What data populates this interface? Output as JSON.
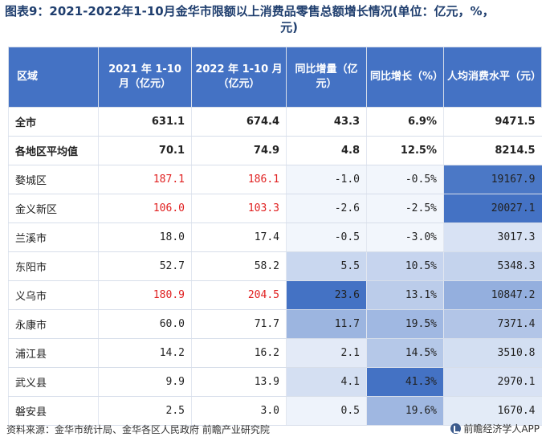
{
  "title": {
    "line1": "图表9：2021-2022年1-10月金华市限额以上消费品零售总额增长情况(单位：亿元，%，",
    "line2": "元)"
  },
  "table": {
    "headers": [
      "区域",
      "2021 年 1-10 月（亿元）",
      "2022 年 1-10 月（亿元）",
      "同比增量（亿元）",
      "同比增长（%）",
      "人均消费水平（元）"
    ],
    "rows": [
      {
        "name": "全市",
        "v2021": "631.1",
        "v2022": "674.4",
        "delta": "43.3",
        "growth": "6.9%",
        "percap": "9471.5"
      },
      {
        "name": "各地区平均值",
        "v2021": "70.1",
        "v2022": "74.9",
        "delta": "4.8",
        "growth": "12.5%",
        "percap": "8214.5"
      },
      {
        "name": "婺城区",
        "v2021": "187.1",
        "v2022": "186.1",
        "delta": "-1.0",
        "growth": "-0.5%",
        "percap": "19167.9"
      },
      {
        "name": "金义新区",
        "v2021": "106.0",
        "v2022": "103.3",
        "delta": "-2.6",
        "growth": "-2.5%",
        "percap": "20027.1"
      },
      {
        "name": "兰溪市",
        "v2021": "18.0",
        "v2022": "17.4",
        "delta": "-0.5",
        "growth": "-3.0%",
        "percap": "3017.3"
      },
      {
        "name": "东阳市",
        "v2021": "52.7",
        "v2022": "58.2",
        "delta": "5.5",
        "growth": "10.5%",
        "percap": "5348.3"
      },
      {
        "name": "义乌市",
        "v2021": "180.9",
        "v2022": "204.5",
        "delta": "23.6",
        "growth": "13.1%",
        "percap": "10847.2"
      },
      {
        "name": "永康市",
        "v2021": "60.0",
        "v2022": "71.7",
        "delta": "11.7",
        "growth": "19.5%",
        "percap": "7371.4"
      },
      {
        "name": "浦江县",
        "v2021": "14.2",
        "v2022": "16.2",
        "delta": "2.1",
        "growth": "14.5%",
        "percap": "3510.8"
      },
      {
        "name": "武义县",
        "v2021": "9.9",
        "v2022": "13.9",
        "delta": "4.1",
        "growth": "41.3%",
        "percap": "2970.1"
      },
      {
        "name": "磐安县",
        "v2021": "2.5",
        "v2022": "3.0",
        "delta": "0.5",
        "growth": "19.6%",
        "percap": "1670.4"
      }
    ]
  },
  "footer": {
    "source": "资料来源：金华市统计局、金华各区人民政府 前瞻产业研究院",
    "brand": "前瞻经济学人APP"
  },
  "colors": {
    "header_bg": "#4472c4",
    "highlight_red": "#e02020"
  }
}
